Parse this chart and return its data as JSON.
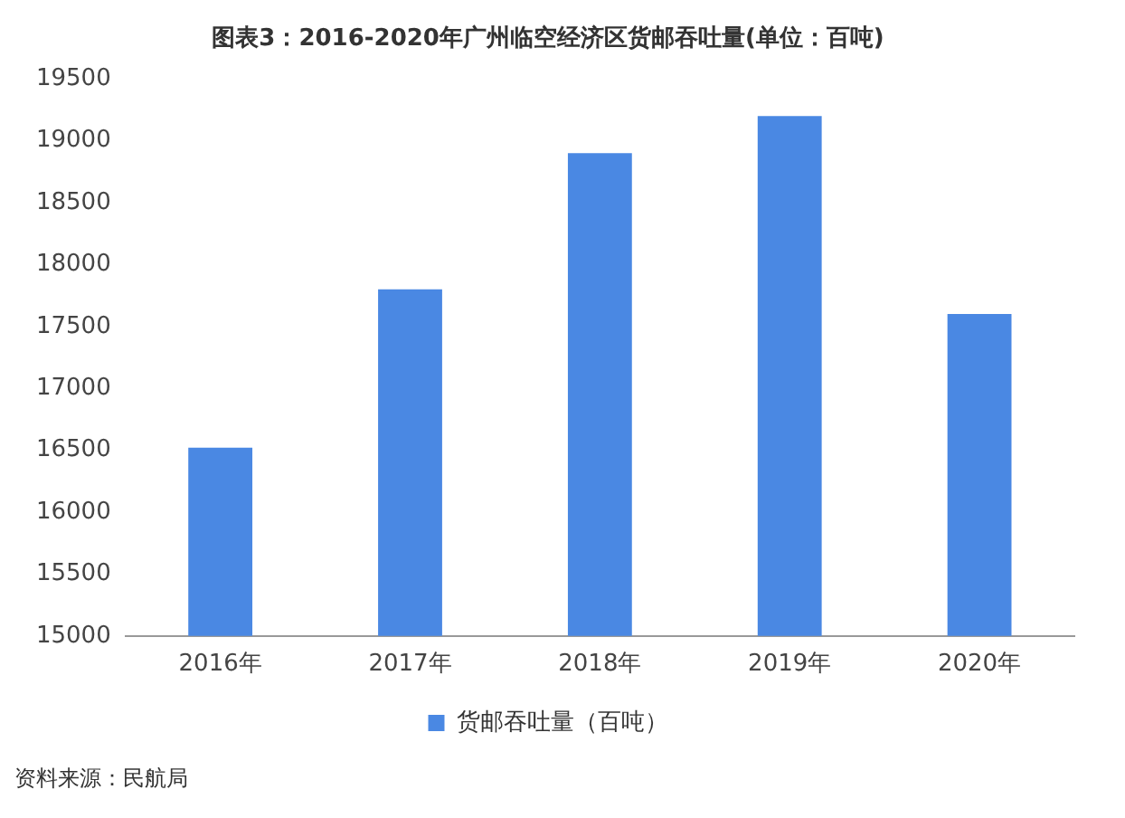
{
  "chart_data": {
    "type": "bar",
    "title": "图表3：2016-2020年广州临空经济区货邮吞吐量(单位：百吨)",
    "categories": [
      "2016年",
      "2017年",
      "2018年",
      "2019年",
      "2020年"
    ],
    "series": [
      {
        "name": "货邮吞吐量（百吨）",
        "color": "#4a88e3",
        "values": [
          16520,
          17800,
          18900,
          19200,
          17600
        ]
      }
    ],
    "ylim": [
      15000,
      19500
    ],
    "yticks": [
      15000,
      15500,
      16000,
      16500,
      17000,
      17500,
      18000,
      18500,
      19000,
      19500
    ],
    "grid": false,
    "legend": "bottom",
    "annotations": [
      "资料来源：民航局"
    ]
  }
}
